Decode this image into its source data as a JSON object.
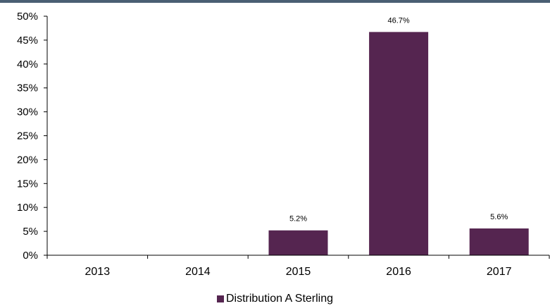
{
  "chart_data": {
    "type": "bar",
    "categories": [
      "2013",
      "2014",
      "2015",
      "2016",
      "2017"
    ],
    "series": [
      {
        "name": "Distribution A Sterling",
        "values": [
          0,
          0,
          5.2,
          46.7,
          5.6
        ],
        "value_labels": [
          "",
          "",
          "5.2%",
          "46.7%",
          "5.6%"
        ],
        "color": "#552550"
      }
    ],
    "y_ticks": [
      "0%",
      "5%",
      "10%",
      "15%",
      "20%",
      "25%",
      "30%",
      "35%",
      "40%",
      "45%",
      "50%"
    ],
    "ylim": [
      0,
      50
    ],
    "grid": false,
    "legend": "bottom-center",
    "title": "",
    "xlabel": "",
    "ylabel": ""
  },
  "colors": {
    "top_band": "#4a5f73",
    "axis": "#000000"
  }
}
